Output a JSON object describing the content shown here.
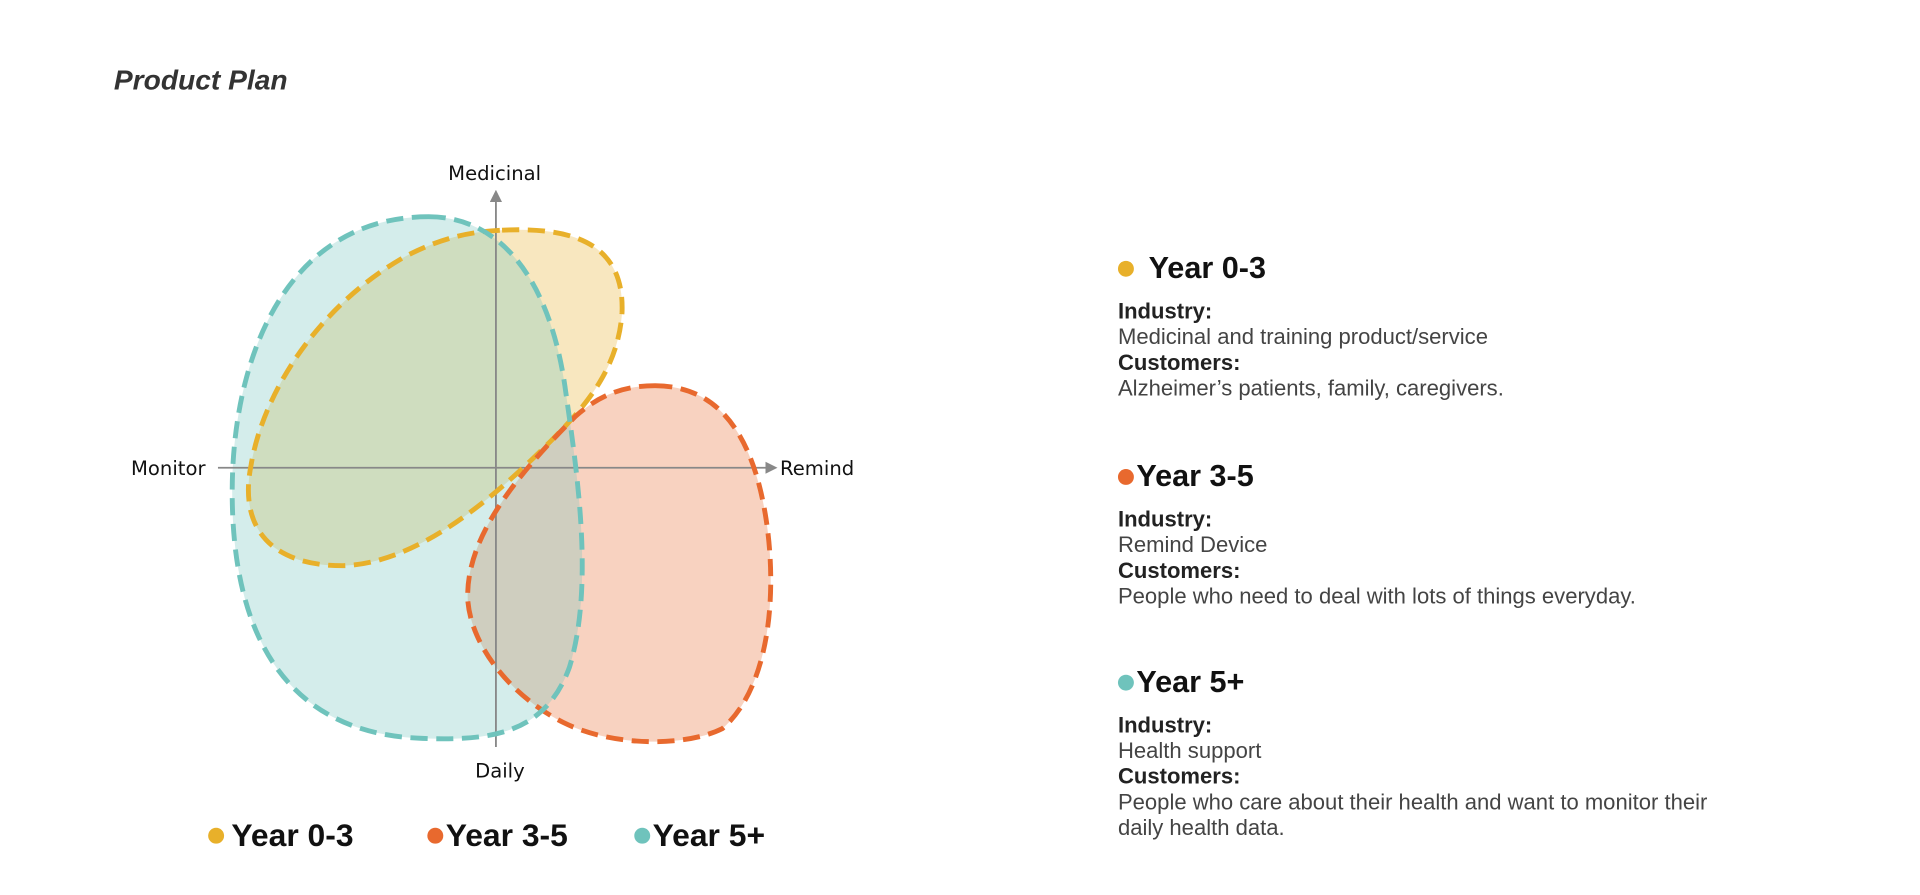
{
  "title": "Product Plan",
  "axes": {
    "top": "Medicinal",
    "bottom": "Daily",
    "left": "Monitor",
    "right": "Remind"
  },
  "groups": [
    {
      "name": "Year 0-3",
      "color": "#e8b02a",
      "industry_label": "Industry:",
      "industry": "Medicinal and training product/service",
      "customers_label": "Customers:",
      "customers": "Alzheimer’s patients, family, caregivers."
    },
    {
      "name": "Year 3-5",
      "color": "#e8692e",
      "industry_label": "Industry:",
      "industry": "Remind Device",
      "customers_label": "Customers:",
      "customers": "People who need to deal with lots of things everyday."
    },
    {
      "name": "Year 5+",
      "color": "#6fc3bc",
      "industry_label": "Industry:",
      "industry": "Health support",
      "customers_label": "Customers:",
      "customers": "People who care about their health and want to monitor their daily health data."
    }
  ]
}
